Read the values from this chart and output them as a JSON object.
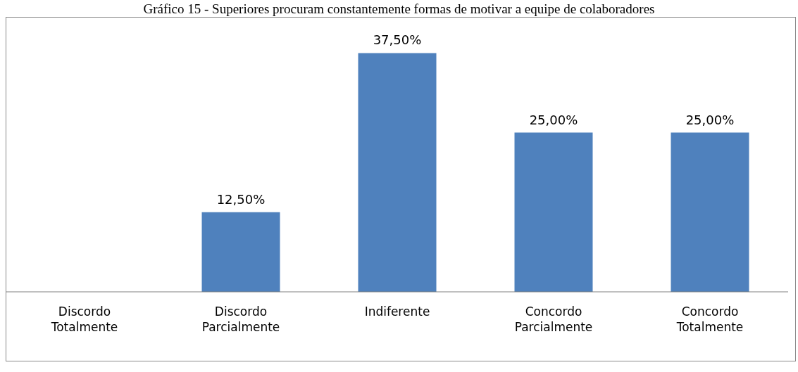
{
  "chart_data": {
    "type": "bar",
    "title": "Gráfico 15 - Superiores procuram constantemente formas de motivar a equipe de colaboradores",
    "categories": [
      "Discordo Totalmente",
      "Discordo Parcialmente",
      "Indiferente",
      "Concordo Parcialmente",
      "Concordo Totalmente"
    ],
    "values": [
      0,
      12.5,
      37.5,
      25,
      25
    ],
    "value_labels": [
      null,
      "12,50%",
      "37,50%",
      "25,00%",
      "25,00%"
    ],
    "color": "#4f81bd"
  }
}
